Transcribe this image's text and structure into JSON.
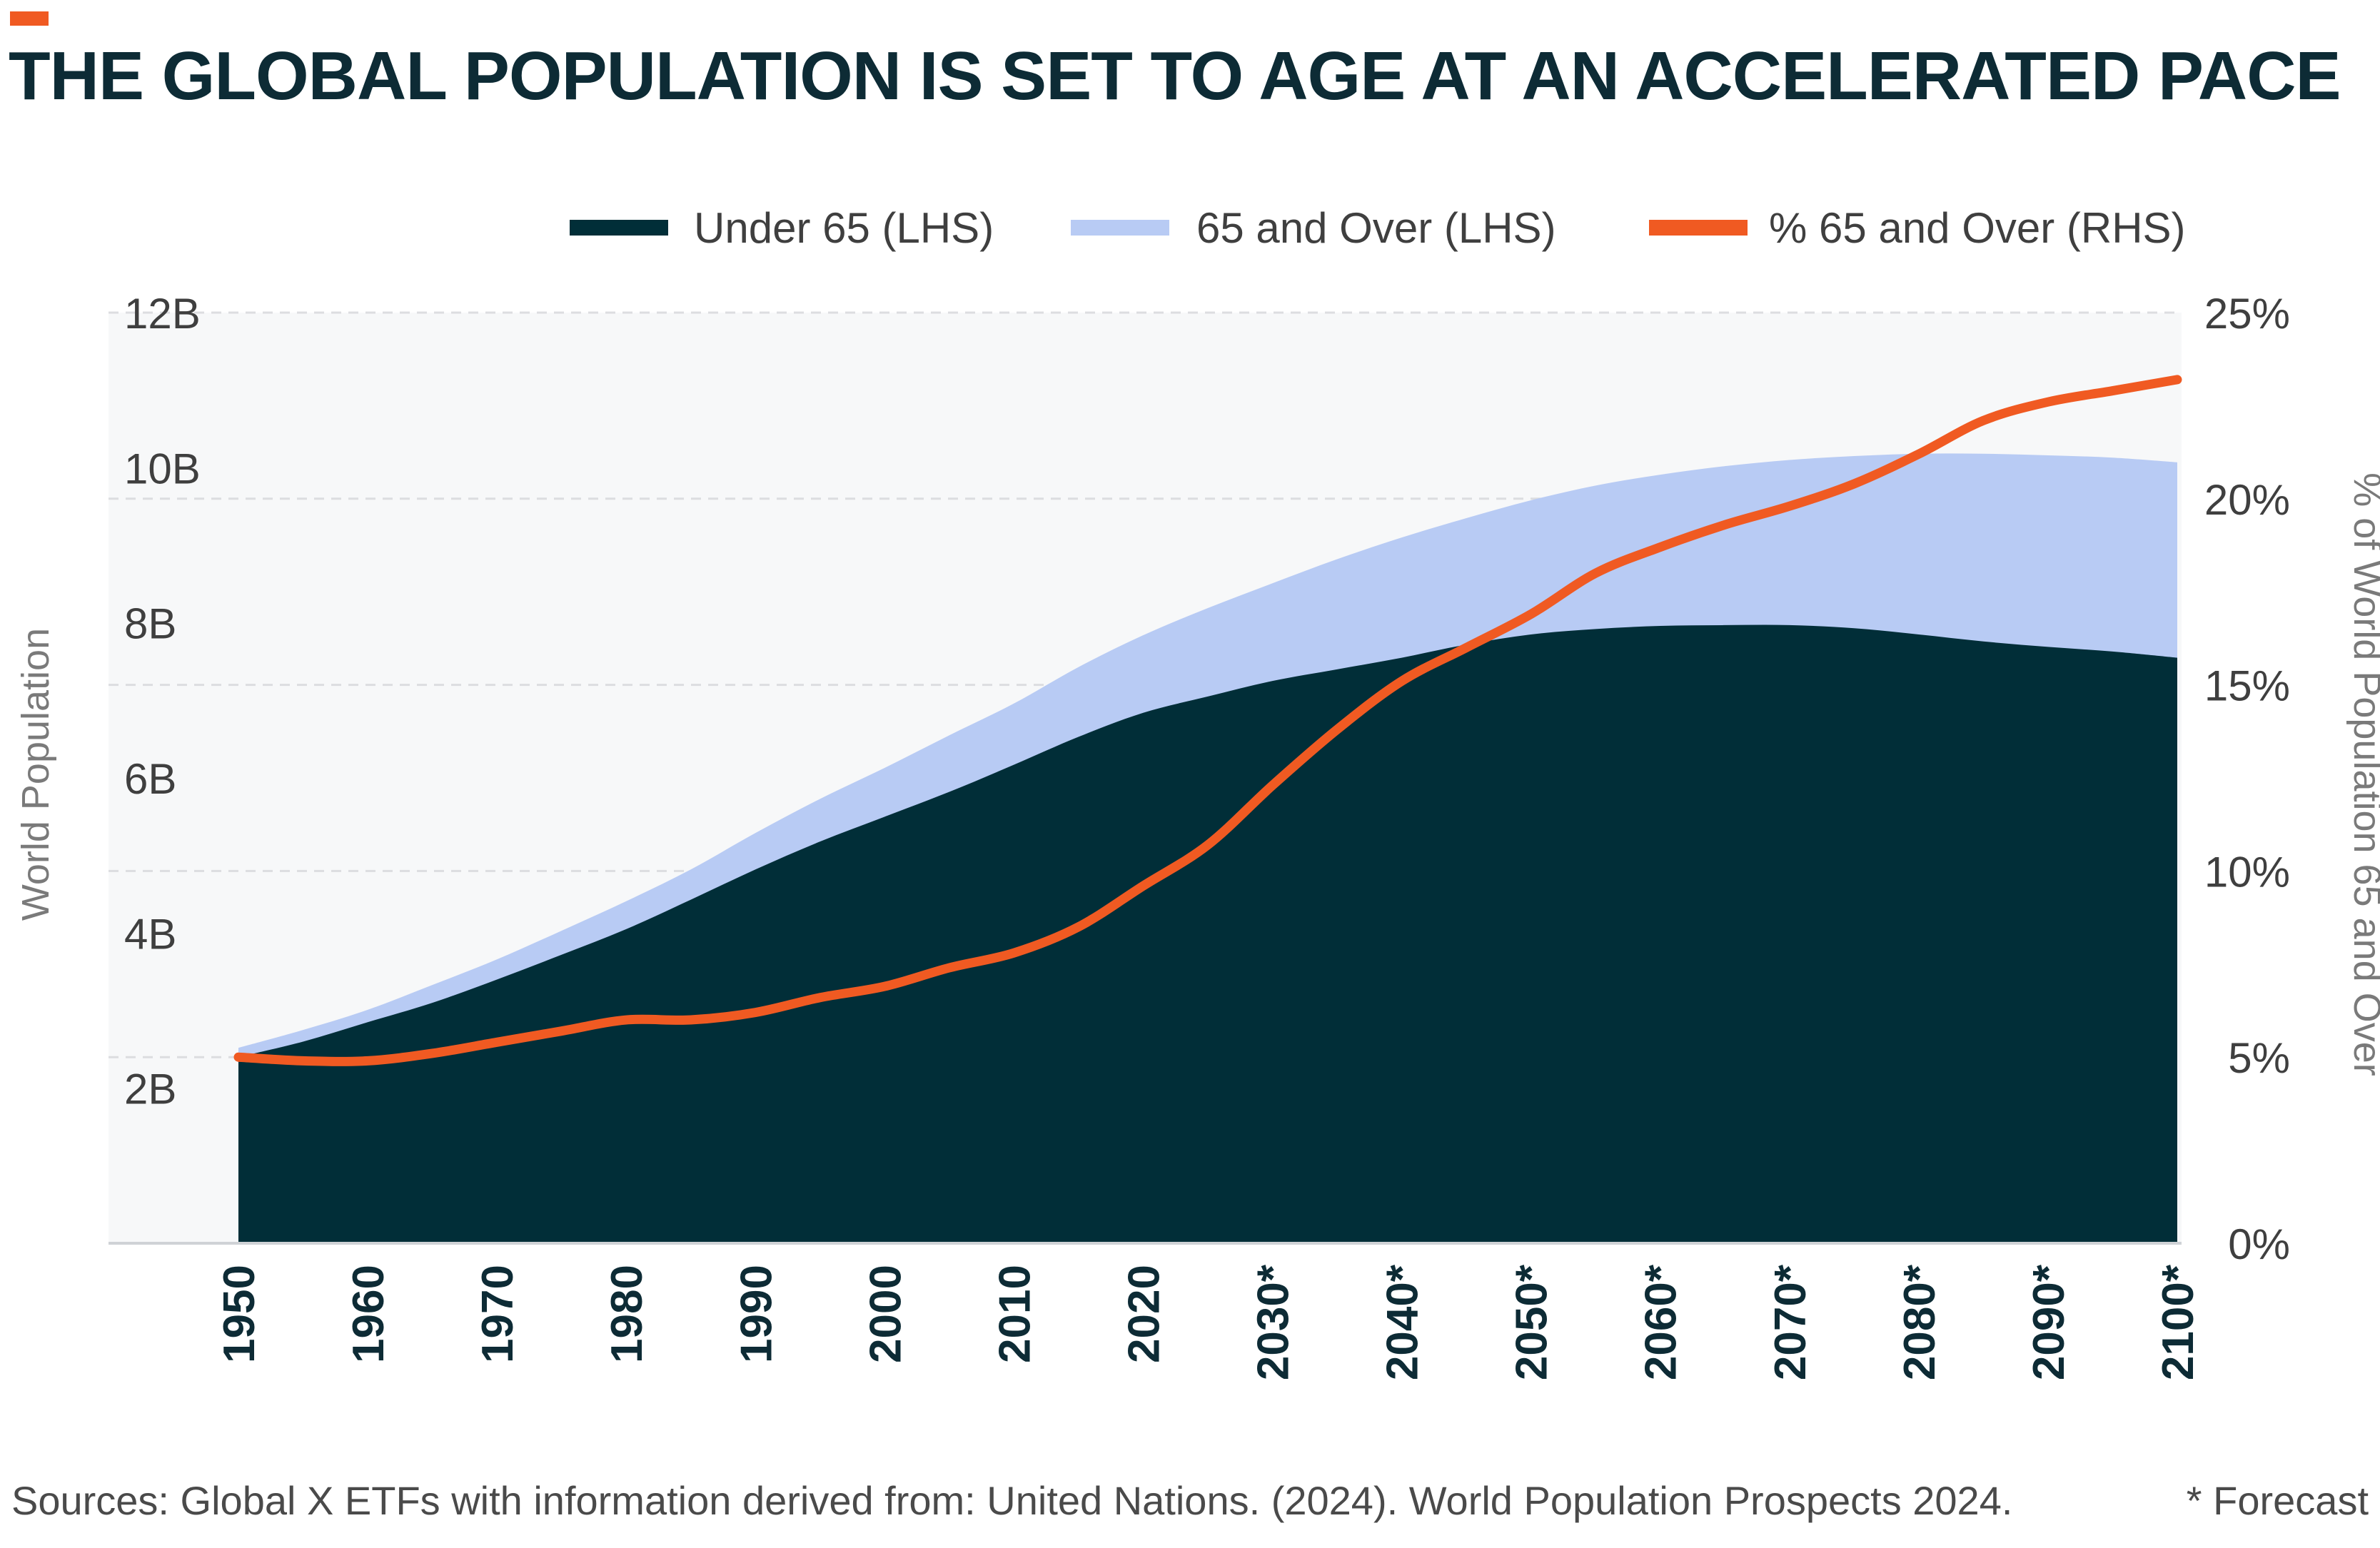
{
  "header": {
    "title": "THE GLOBAL POPULATION IS SET TO AGE AT AN ACCELERATED PACE"
  },
  "footer": {
    "source": "Sources: Global X ETFs with information derived from: United Nations. (2024). World Population Prospects 2024.",
    "forecast_note": "* Forecast"
  },
  "colors": {
    "accent": "#f05a22",
    "under65": "#012e38",
    "over65": "#b8cbf4",
    "pct_line": "#f05a22",
    "plot_bg": "#f7f8f9",
    "title_text": "#0d2b35"
  },
  "chart_data": {
    "type": "area",
    "title": "THE GLOBAL POPULATION IS SET TO AGE AT AN ACCELERATED PACE",
    "x": [
      1950,
      1955,
      1960,
      1965,
      1970,
      1975,
      1980,
      1985,
      1990,
      1995,
      2000,
      2005,
      2010,
      2015,
      2020,
      2025,
      2030,
      2035,
      2040,
      2045,
      2050,
      2055,
      2060,
      2065,
      2070,
      2075,
      2080,
      2085,
      2090,
      2095,
      2100
    ],
    "x_tick_labels": [
      "1950",
      "1960",
      "1970",
      "1980",
      "1990",
      "2000",
      "2010",
      "2020",
      "2030*",
      "2040*",
      "2050*",
      "2060*",
      "2070*",
      "2080*",
      "2090*",
      "2100*"
    ],
    "x_tick_values": [
      1950,
      1960,
      1970,
      1980,
      1990,
      2000,
      2010,
      2020,
      2030,
      2040,
      2050,
      2060,
      2070,
      2080,
      2090,
      2100
    ],
    "ylabel": "World Population",
    "y2label": "% of World Population 65 and Over",
    "ylim": [
      0,
      12
    ],
    "y_ticks": [
      "2B",
      "4B",
      "6B",
      "8B",
      "10B",
      "12B"
    ],
    "y_tick_values": [
      2,
      4,
      6,
      8,
      10,
      12
    ],
    "y2lim": [
      0,
      25
    ],
    "y2_ticks": [
      "0%",
      "5%",
      "10%",
      "15%",
      "20%",
      "25%"
    ],
    "y2_tick_values": [
      0,
      5,
      10,
      15,
      20,
      25
    ],
    "grid": true,
    "legend_position": "top-right",
    "series": [
      {
        "name": "Under 65 (LHS)",
        "kind": "area",
        "axis": "left",
        "color": "#012e38",
        "values": [
          2.4,
          2.6,
          2.85,
          3.1,
          3.4,
          3.72,
          4.05,
          4.43,
          4.82,
          5.18,
          5.5,
          5.82,
          6.17,
          6.53,
          6.84,
          7.05,
          7.25,
          7.4,
          7.55,
          7.72,
          7.85,
          7.92,
          7.96,
          7.97,
          7.97,
          7.93,
          7.85,
          7.76,
          7.69,
          7.63,
          7.55
        ]
      },
      {
        "name": "65 and Over (LHS)",
        "kind": "area",
        "axis": "left",
        "color": "#b8cbf4",
        "values": [
          2.52,
          2.75,
          3.01,
          3.33,
          3.66,
          4.03,
          4.41,
          4.82,
          5.29,
          5.73,
          6.13,
          6.55,
          6.96,
          7.43,
          7.84,
          8.19,
          8.51,
          8.82,
          9.1,
          9.35,
          9.58,
          9.77,
          9.91,
          10.02,
          10.1,
          10.15,
          10.18,
          10.18,
          10.16,
          10.13,
          10.07
        ]
      },
      {
        "name": "% 65 and Over (RHS)",
        "kind": "line",
        "axis": "right",
        "color": "#f05a22",
        "values": [
          5.0,
          4.9,
          4.9,
          5.1,
          5.4,
          5.7,
          6.0,
          6.0,
          6.2,
          6.6,
          6.9,
          7.4,
          7.8,
          8.5,
          9.6,
          10.7,
          12.3,
          13.8,
          15.1,
          16.0,
          16.9,
          18.0,
          18.7,
          19.3,
          19.8,
          20.4,
          21.2,
          22.1,
          22.6,
          22.9,
          23.2
        ]
      }
    ]
  }
}
